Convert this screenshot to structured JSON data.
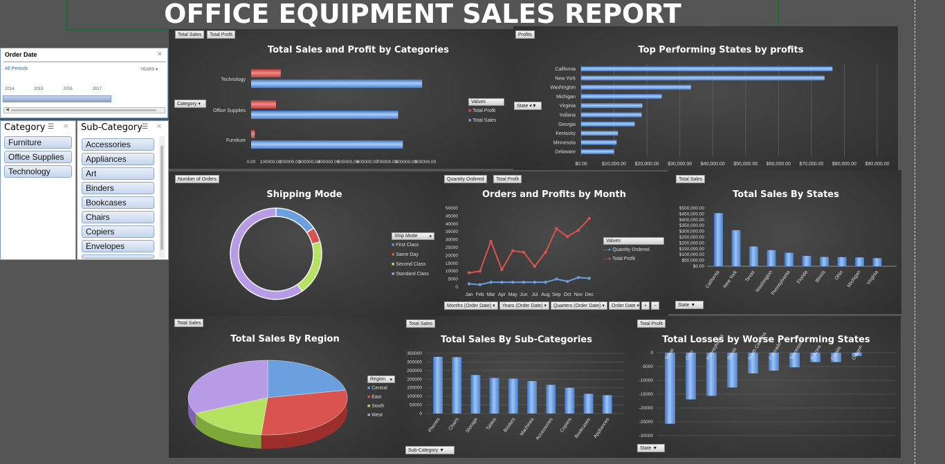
{
  "report_title": "OFFICE EQUIPMENT SALES REPORT",
  "timeline": {
    "title": "Order Date",
    "period": "All Periods",
    "unit": "YEARS",
    "years": [
      "2014",
      "2015",
      "2016",
      "2017"
    ]
  },
  "category_slicer": {
    "title": "Category",
    "items": [
      "Furniture",
      "Office Supplies",
      "Technology"
    ]
  },
  "subcategory_slicer": {
    "title": "Sub-Category",
    "items": [
      "Accessories",
      "Appliances",
      "Art",
      "Binders",
      "Bookcases",
      "Chairs",
      "Copiers",
      "Envelopes"
    ]
  },
  "colors": {
    "blue": "#6a9fe0",
    "red": "#d9534f",
    "green": "#b5e361",
    "purple": "#b79be6",
    "bg": "#3a3a3a"
  },
  "chart_data": [
    {
      "type": "bar",
      "title": "Total Sales and Profit by Categories",
      "buttons": [
        "Total Sales",
        "Total Profit"
      ],
      "filter": "Category",
      "legend_title": "Values",
      "categories": [
        "Technology",
        "Office Supplies",
        "Furniture"
      ],
      "series": [
        {
          "name": "Total Profit",
          "values": [
            145000,
            122000,
            18000
          ]
        },
        {
          "name": "Total Sales",
          "values": [
            836000,
            719000,
            742000
          ]
        }
      ],
      "xticks": [
        "0.00",
        "100000.00",
        "200000.00",
        "300000.00",
        "400000.00",
        "500000.00",
        "600000.00",
        "700000.00",
        "800000.00",
        "900000.00"
      ],
      "xlim": [
        0,
        900000
      ]
    },
    {
      "type": "bar",
      "title": "Top Performing States by profits",
      "buttons": [
        "Profits"
      ],
      "filter": "State",
      "categories": [
        "California",
        "New York",
        "Washington",
        "Michigan",
        "Virginia",
        "Indiana",
        "Georgia",
        "Kentucky",
        "Minnesota",
        "Delaware"
      ],
      "values": [
        76400,
        74000,
        33400,
        24500,
        18600,
        18400,
        16300,
        11200,
        10800,
        9980
      ],
      "xticks": [
        "$0.00",
        "$10,000.00",
        "$20,000.00",
        "$30,000.00",
        "$40,000.00",
        "$50,000.00",
        "$60,000.00",
        "$70,000.00",
        "$80,000.00",
        "$90,000.00"
      ],
      "xlim": [
        0,
        90000
      ]
    },
    {
      "type": "pie",
      "title": "Shipping Mode",
      "buttons": [
        "Number of Orders"
      ],
      "legend_title": "Ship Mode",
      "labels": [
        "First Class",
        "Same Day",
        "Second Class",
        "Standard Class"
      ],
      "values": [
        15.4,
        5.4,
        19.5,
        59.7
      ]
    },
    {
      "type": "line",
      "title": "Orders and Profits by Month",
      "buttons": [
        "Quantity Ordered",
        "Total Profit"
      ],
      "legend_title": "Values",
      "filters": [
        "Months (Order Date)",
        "Years (Order Date)",
        "Quarters (Order Date)",
        "Order Date"
      ],
      "categories": [
        "Jan",
        "Feb",
        "Mar",
        "Apr",
        "May",
        "Jun",
        "Jul",
        "Aug",
        "Sep",
        "Oct",
        "Nov",
        "Dec"
      ],
      "series": [
        {
          "name": "Quantity Ordered",
          "values": [
            2000,
            1500,
            3000,
            3000,
            3000,
            3000,
            3000,
            3000,
            5000,
            3500,
            6000,
            5500
          ]
        },
        {
          "name": "Total Profit",
          "values": [
            9000,
            10000,
            29000,
            11000,
            23000,
            22000,
            13000,
            22000,
            37000,
            32000,
            36000,
            43500
          ]
        }
      ],
      "yticks": [
        "0",
        "5000",
        "10000",
        "15000",
        "20000",
        "25000",
        "30000",
        "35000",
        "40000",
        "45000",
        "50000"
      ],
      "ylim": [
        0,
        50000
      ]
    },
    {
      "type": "bar",
      "title": "Total Sales By States",
      "buttons": [
        "Total Sales"
      ],
      "filter": "State",
      "categories": [
        "California",
        "New York",
        "Texas",
        "Washington",
        "Pennsylvania",
        "Florida",
        "Illinois",
        "Ohio",
        "Michigan",
        "Virginia"
      ],
      "values": [
        457000,
        310000,
        170000,
        139000,
        116000,
        89000,
        80000,
        78000,
        76000,
        70000
      ],
      "yticks": [
        "$0.00",
        "$50,000.00",
        "$100,000.00",
        "$150,000.00",
        "$200,000.00",
        "$250,000.00",
        "$300,000.00",
        "$350,000.00",
        "$400,000.00",
        "$450,000.00",
        "$500,000.00"
      ],
      "ylim": [
        0,
        500000
      ]
    },
    {
      "type": "pie",
      "title": "Total Sales By Region",
      "buttons": [
        "Total Sales"
      ],
      "legend_title": "Region",
      "labels": [
        "Central",
        "East",
        "South",
        "West"
      ],
      "values": [
        21.8,
        29.5,
        16.8,
        31.9
      ]
    },
    {
      "type": "bar",
      "title": "Total Sales By Sub-Categories",
      "buttons": [
        "Total Sales"
      ],
      "filter": "Sub-Category",
      "categories": [
        "Phones",
        "Chairs",
        "Storage",
        "Tables",
        "Binders",
        "Machines",
        "Accessories",
        "Copiers",
        "Bookcases",
        "Appliances"
      ],
      "values": [
        330000,
        328000,
        224000,
        207000,
        203000,
        189000,
        167000,
        150000,
        115000,
        107000
      ],
      "yticks": [
        "0",
        "50000",
        "100000",
        "150000",
        "200000",
        "250000",
        "300000",
        "350000"
      ],
      "ylim": [
        0,
        350000
      ]
    },
    {
      "type": "bar",
      "title": "Total Losses by Worse Performing States",
      "buttons": [
        "Total Profit"
      ],
      "filter": "State",
      "categories": [
        "Texas",
        "Ohio",
        "Pennsylvania",
        "Illinois",
        "North Carolina",
        "Colorado",
        "Tennessee",
        "Arizona",
        "Florida",
        "Oregon"
      ],
      "values": [
        -25700,
        -16900,
        -15600,
        -12600,
        -7500,
        -6500,
        -5300,
        -3400,
        -3400,
        -1200
      ],
      "yticks": [
        "0",
        "-5000",
        "-10000",
        "-15000",
        "-20000",
        "-25000",
        "-30000"
      ],
      "ylim": [
        -30000,
        0
      ]
    }
  ]
}
